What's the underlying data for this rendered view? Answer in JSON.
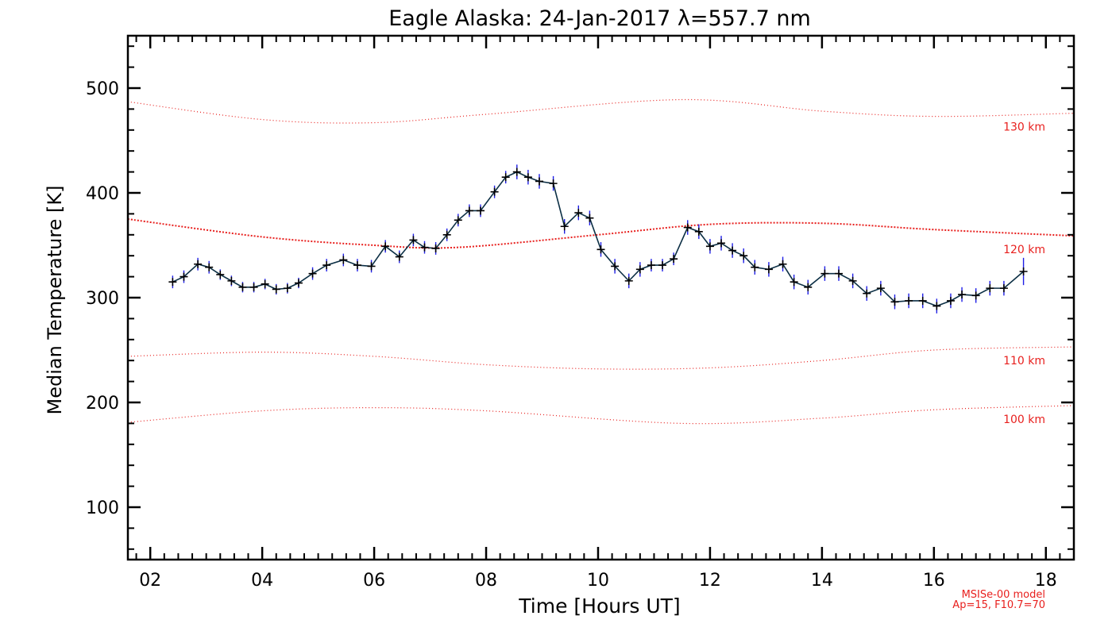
{
  "chart_data": {
    "type": "line",
    "title": "Eagle Alaska: 24-Jan-2017 λ=557.7 nm",
    "xlabel": "Time [Hours UT]",
    "ylabel": "Median Temperature [K]",
    "xlim": [
      1.6,
      18.5
    ],
    "ylim": [
      50,
      550
    ],
    "x_ticks": [
      2,
      4,
      6,
      8,
      10,
      12,
      14,
      16,
      18
    ],
    "x_tick_labels": [
      "02",
      "04",
      "06",
      "08",
      "10",
      "12",
      "14",
      "16",
      "18"
    ],
    "y_ticks": [
      100,
      200,
      300,
      400,
      500
    ],
    "y_tick_labels": [
      "100",
      "200",
      "300",
      "400",
      "500"
    ],
    "grid": false,
    "colors": {
      "data": "#0c2f45",
      "error_bars": "#1e1ee6",
      "model": "#e8201e"
    },
    "series": [
      {
        "x": [
          2.4,
          2.6,
          2.85,
          3.05,
          3.25,
          3.45,
          3.65,
          3.85,
          4.05,
          4.25,
          4.45,
          4.65,
          4.9,
          5.15,
          5.45,
          5.7,
          5.95,
          6.2,
          6.45,
          6.7,
          6.9,
          7.1,
          7.3,
          7.5,
          7.7,
          7.9,
          8.15,
          8.35,
          8.55,
          8.75,
          8.95,
          9.2,
          9.4,
          9.65,
          9.85,
          10.05,
          10.3,
          10.55,
          10.75,
          10.95,
          11.15,
          11.35,
          11.6,
          11.8,
          12.0,
          12.2,
          12.4,
          12.6,
          12.8,
          13.05,
          13.3,
          13.5,
          13.75,
          14.05,
          14.3,
          14.55,
          14.8,
          15.05,
          15.3,
          15.55,
          15.8,
          16.05,
          16.3,
          16.5,
          16.75,
          17.0,
          17.25,
          17.6
        ],
        "y": [
          315,
          320,
          332,
          329,
          322,
          316,
          310,
          310,
          313,
          308,
          309,
          314,
          323,
          331,
          336,
          331,
          330,
          349,
          339,
          355,
          348,
          347,
          360,
          374,
          383,
          383,
          401,
          415,
          420,
          415,
          411,
          409,
          368,
          381,
          376,
          346,
          330,
          316,
          327,
          331,
          331,
          337,
          367,
          363,
          349,
          352,
          345,
          340,
          329,
          327,
          332,
          315,
          310,
          323,
          323,
          316,
          304,
          309,
          296,
          297,
          297,
          292,
          297,
          303,
          302,
          309,
          309,
          325
        ],
        "err": [
          6,
          6,
          6,
          6,
          5,
          5,
          5,
          5,
          5,
          5,
          5,
          5,
          6,
          6,
          6,
          6,
          6,
          6,
          6,
          6,
          6,
          6,
          6,
          6,
          6,
          6,
          6,
          6,
          7,
          7,
          7,
          7,
          7,
          7,
          7,
          7,
          7,
          7,
          7,
          6,
          6,
          6,
          7,
          7,
          7,
          7,
          7,
          7,
          7,
          7,
          7,
          7,
          7,
          7,
          7,
          7,
          7,
          7,
          7,
          7,
          7,
          7,
          7,
          7,
          7,
          7,
          7,
          13
        ]
      }
    ],
    "model_curves": [
      {
        "name": "130 km",
        "x": [
          1.6,
          4,
          6,
          8,
          11.5,
          14,
          16,
          18.5
        ],
        "y": [
          487,
          470,
          467,
          475,
          489,
          478,
          473,
          476
        ],
        "dash": "fine"
      },
      {
        "name": "120 km",
        "x": [
          1.6,
          4,
          6,
          7.5,
          10,
          12,
          14,
          16,
          18.5
        ],
        "y": [
          375,
          358,
          350,
          348,
          360,
          370,
          371,
          365,
          359
        ],
        "dash": "coarse"
      },
      {
        "name": "110 km",
        "x": [
          1.6,
          4,
          6,
          8,
          10,
          12,
          14,
          16,
          18.5
        ],
        "y": [
          244,
          248,
          244,
          236,
          232,
          233,
          240,
          250,
          253
        ],
        "dash": "fine"
      },
      {
        "name": "100 km",
        "x": [
          1.6,
          4,
          6,
          8,
          11.5,
          14,
          16,
          18.5
        ],
        "y": [
          181,
          192,
          195,
          192,
          180,
          185,
          193,
          197
        ],
        "dash": "fine"
      }
    ],
    "annotations": [
      "MSISe-00 model",
      "Ap=15, F10.7=70"
    ]
  }
}
